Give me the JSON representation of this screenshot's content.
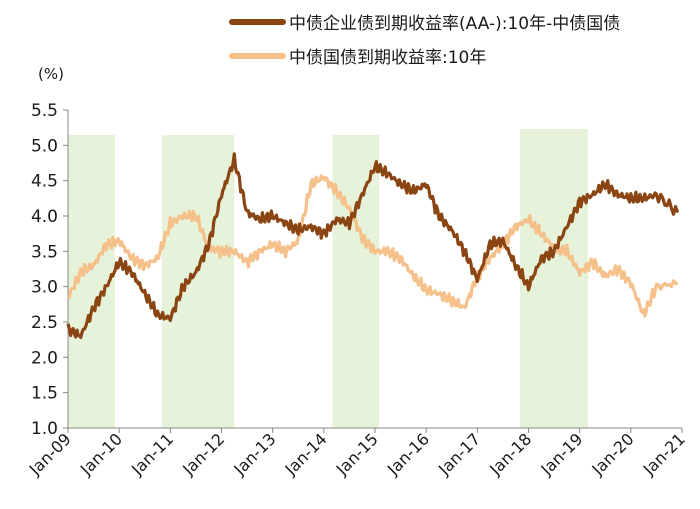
{
  "chart_data": {
    "type": "line",
    "ylabel": "(%)",
    "ylim": [
      1.0,
      5.5
    ],
    "yticks": [
      "1.0",
      "1.5",
      "2.0",
      "2.5",
      "3.0",
      "3.5",
      "4.0",
      "4.5",
      "5.0",
      "5.5"
    ],
    "xticks": [
      "Jan-09",
      "Jan-10",
      "Jan-11",
      "Jan-12",
      "Jan-13",
      "Jan-14",
      "Jan-15",
      "Jan-16",
      "Jan-17",
      "Jan-18",
      "Jan-19",
      "Jan-20",
      "Jan-21"
    ],
    "xlim": [
      "2009-01",
      "2020-12"
    ],
    "grid": false,
    "legend_position": "top",
    "shaded_periods": [
      {
        "start": "2009-01",
        "end": "2009-12"
      },
      {
        "start": "2010-11",
        "end": "2012-04"
      },
      {
        "start": "2014-03",
        "end": "2015-02"
      },
      {
        "start": "2017-11",
        "end": "2019-03"
      }
    ],
    "series": [
      {
        "name": "中债企业债到期收益率(AA-):10年-中债国债",
        "color": "#8B4513",
        "x": [
          "2009-01",
          "2009-04",
          "2009-07",
          "2009-10",
          "2010-01",
          "2010-04",
          "2010-07",
          "2010-10",
          "2011-01",
          "2011-04",
          "2011-07",
          "2011-10",
          "2012-01",
          "2012-04",
          "2012-07",
          "2012-10",
          "2013-01",
          "2013-04",
          "2013-07",
          "2013-10",
          "2014-01",
          "2014-04",
          "2014-07",
          "2014-10",
          "2015-01",
          "2015-04",
          "2015-07",
          "2015-10",
          "2016-01",
          "2016-04",
          "2016-07",
          "2016-10",
          "2017-01",
          "2017-04",
          "2017-07",
          "2017-10",
          "2018-01",
          "2018-04",
          "2018-07",
          "2018-10",
          "2019-01",
          "2019-04",
          "2019-07",
          "2019-10",
          "2020-01",
          "2020-04",
          "2020-07",
          "2020-12"
        ],
        "values": [
          2.4,
          2.3,
          2.7,
          3.0,
          3.35,
          3.2,
          2.9,
          2.6,
          2.55,
          3.0,
          3.2,
          3.6,
          4.3,
          4.8,
          4.05,
          3.95,
          4.0,
          3.9,
          3.8,
          3.85,
          3.75,
          3.95,
          3.9,
          4.3,
          4.7,
          4.6,
          4.45,
          4.35,
          4.45,
          4.0,
          3.8,
          3.5,
          3.1,
          3.6,
          3.65,
          3.3,
          3.0,
          3.4,
          3.5,
          3.85,
          4.2,
          4.3,
          4.45,
          4.3,
          4.25,
          4.25,
          4.3,
          4.05
        ]
      },
      {
        "name": "中债国债到期收益率:10年",
        "color": "#F5C08A",
        "x": [
          "2009-01",
          "2009-04",
          "2009-07",
          "2009-10",
          "2010-01",
          "2010-04",
          "2010-07",
          "2010-10",
          "2011-01",
          "2011-04",
          "2011-07",
          "2011-10",
          "2012-01",
          "2012-04",
          "2012-07",
          "2012-10",
          "2013-01",
          "2013-04",
          "2013-07",
          "2013-10",
          "2014-01",
          "2014-04",
          "2014-07",
          "2014-10",
          "2015-01",
          "2015-04",
          "2015-07",
          "2015-10",
          "2016-01",
          "2016-04",
          "2016-07",
          "2016-10",
          "2017-01",
          "2017-04",
          "2017-07",
          "2017-10",
          "2018-01",
          "2018-04",
          "2018-07",
          "2018-10",
          "2019-01",
          "2019-04",
          "2019-07",
          "2019-10",
          "2020-01",
          "2020-04",
          "2020-07",
          "2020-12"
        ],
        "values": [
          2.85,
          3.2,
          3.3,
          3.6,
          3.65,
          3.4,
          3.3,
          3.4,
          3.9,
          4.0,
          4.0,
          3.55,
          3.5,
          3.5,
          3.35,
          3.5,
          3.6,
          3.5,
          3.65,
          4.45,
          4.55,
          4.35,
          4.1,
          3.7,
          3.5,
          3.5,
          3.4,
          3.15,
          2.95,
          2.9,
          2.8,
          2.7,
          3.15,
          3.4,
          3.6,
          3.85,
          3.95,
          3.75,
          3.55,
          3.5,
          3.2,
          3.35,
          3.15,
          3.25,
          3.05,
          2.6,
          3.0,
          3.05
        ]
      }
    ]
  }
}
